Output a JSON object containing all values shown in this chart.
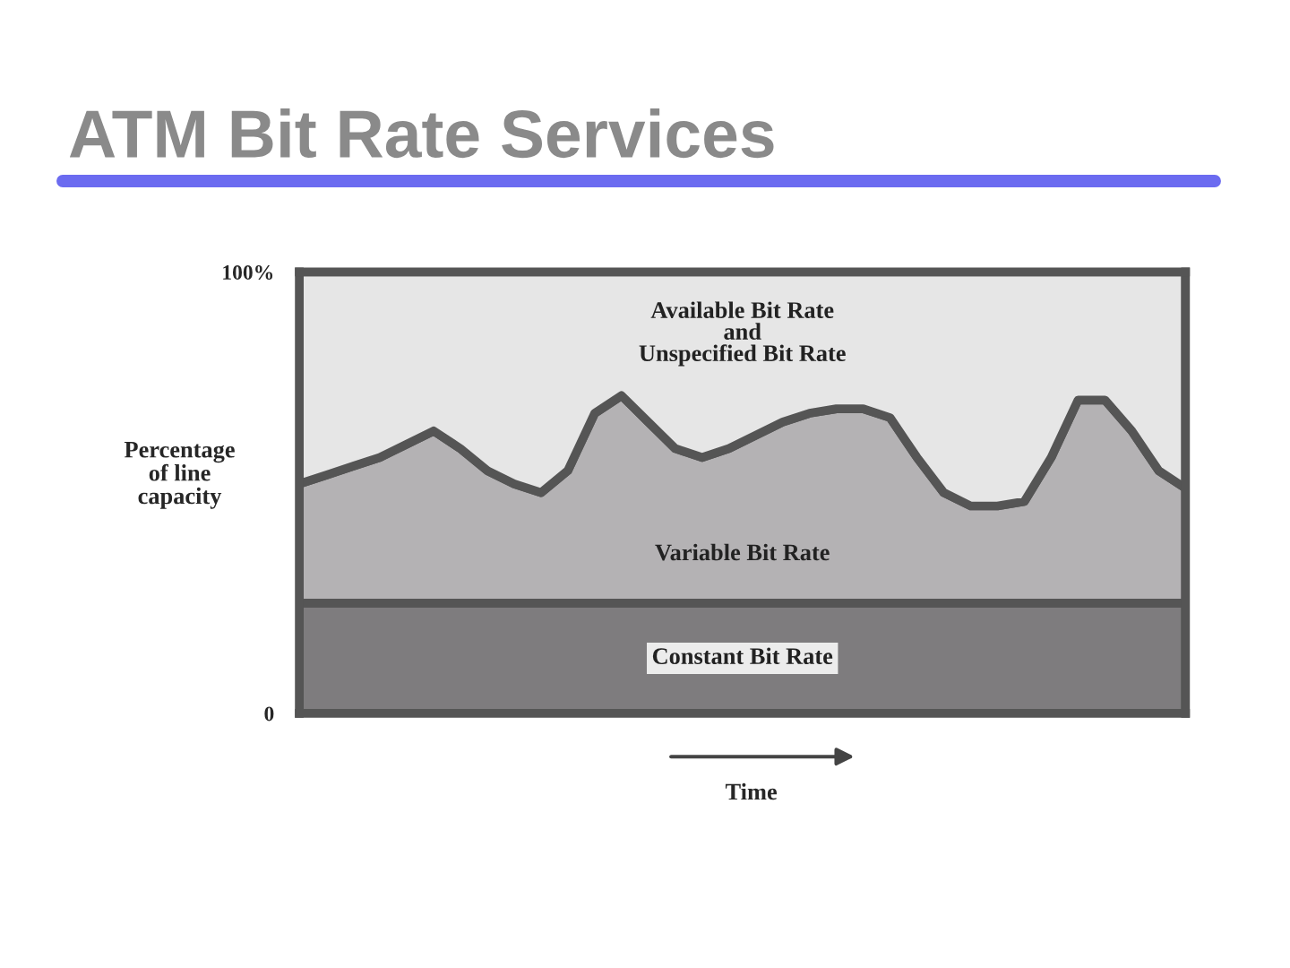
{
  "chart_data": {
    "type": "area",
    "title": "ATM Bit Rate Services",
    "xlabel": "Time",
    "ylabel": "Percentage\nof line\ncapacity",
    "stacked": true,
    "categories": [
      null,
      null,
      null,
      null,
      null,
      null,
      null,
      null,
      null,
      null,
      null,
      null,
      null,
      null,
      null,
      null,
      null,
      null,
      null,
      null,
      null,
      null,
      null,
      null,
      null,
      null,
      null,
      null,
      null,
      null,
      null,
      null,
      null,
      null
    ],
    "series": [
      {
        "name": "Constant Bit Rate",
        "color": "#7e7c7e",
        "values": [
          25,
          25,
          25,
          25,
          25,
          25,
          25,
          25,
          25,
          25,
          25,
          25,
          25,
          25,
          25,
          25,
          25,
          25,
          25,
          25,
          25,
          25,
          25,
          25,
          25,
          25,
          25,
          25,
          25,
          25,
          25,
          25,
          25,
          25
        ]
      },
      {
        "name": "Variable Bit Rate",
        "color": "#b4b2b4",
        "values": [
          27,
          29,
          31,
          33,
          36,
          39,
          35,
          30,
          27,
          25,
          30,
          43,
          47,
          41,
          35,
          33,
          35,
          38,
          41,
          43,
          44,
          44,
          42,
          33,
          25,
          22,
          22,
          23,
          33,
          46,
          46,
          39,
          30,
          26
        ]
      },
      {
        "name": "Available Bit Rate\nand\nUnspecified Bit Rate",
        "color": "#e6e6e6",
        "values": [
          48,
          46,
          44,
          42,
          39,
          36,
          40,
          45,
          48,
          50,
          45,
          32,
          28,
          34,
          40,
          42,
          40,
          37,
          34,
          32,
          31,
          31,
          33,
          42,
          50,
          53,
          53,
          52,
          42,
          29,
          29,
          36,
          45,
          49
        ]
      }
    ],
    "ylim": [
      0,
      100
    ],
    "yticks": [
      0,
      {
        "value": 100,
        "label": "100%"
      }
    ],
    "tick_labels": "y",
    "legend": false
  }
}
